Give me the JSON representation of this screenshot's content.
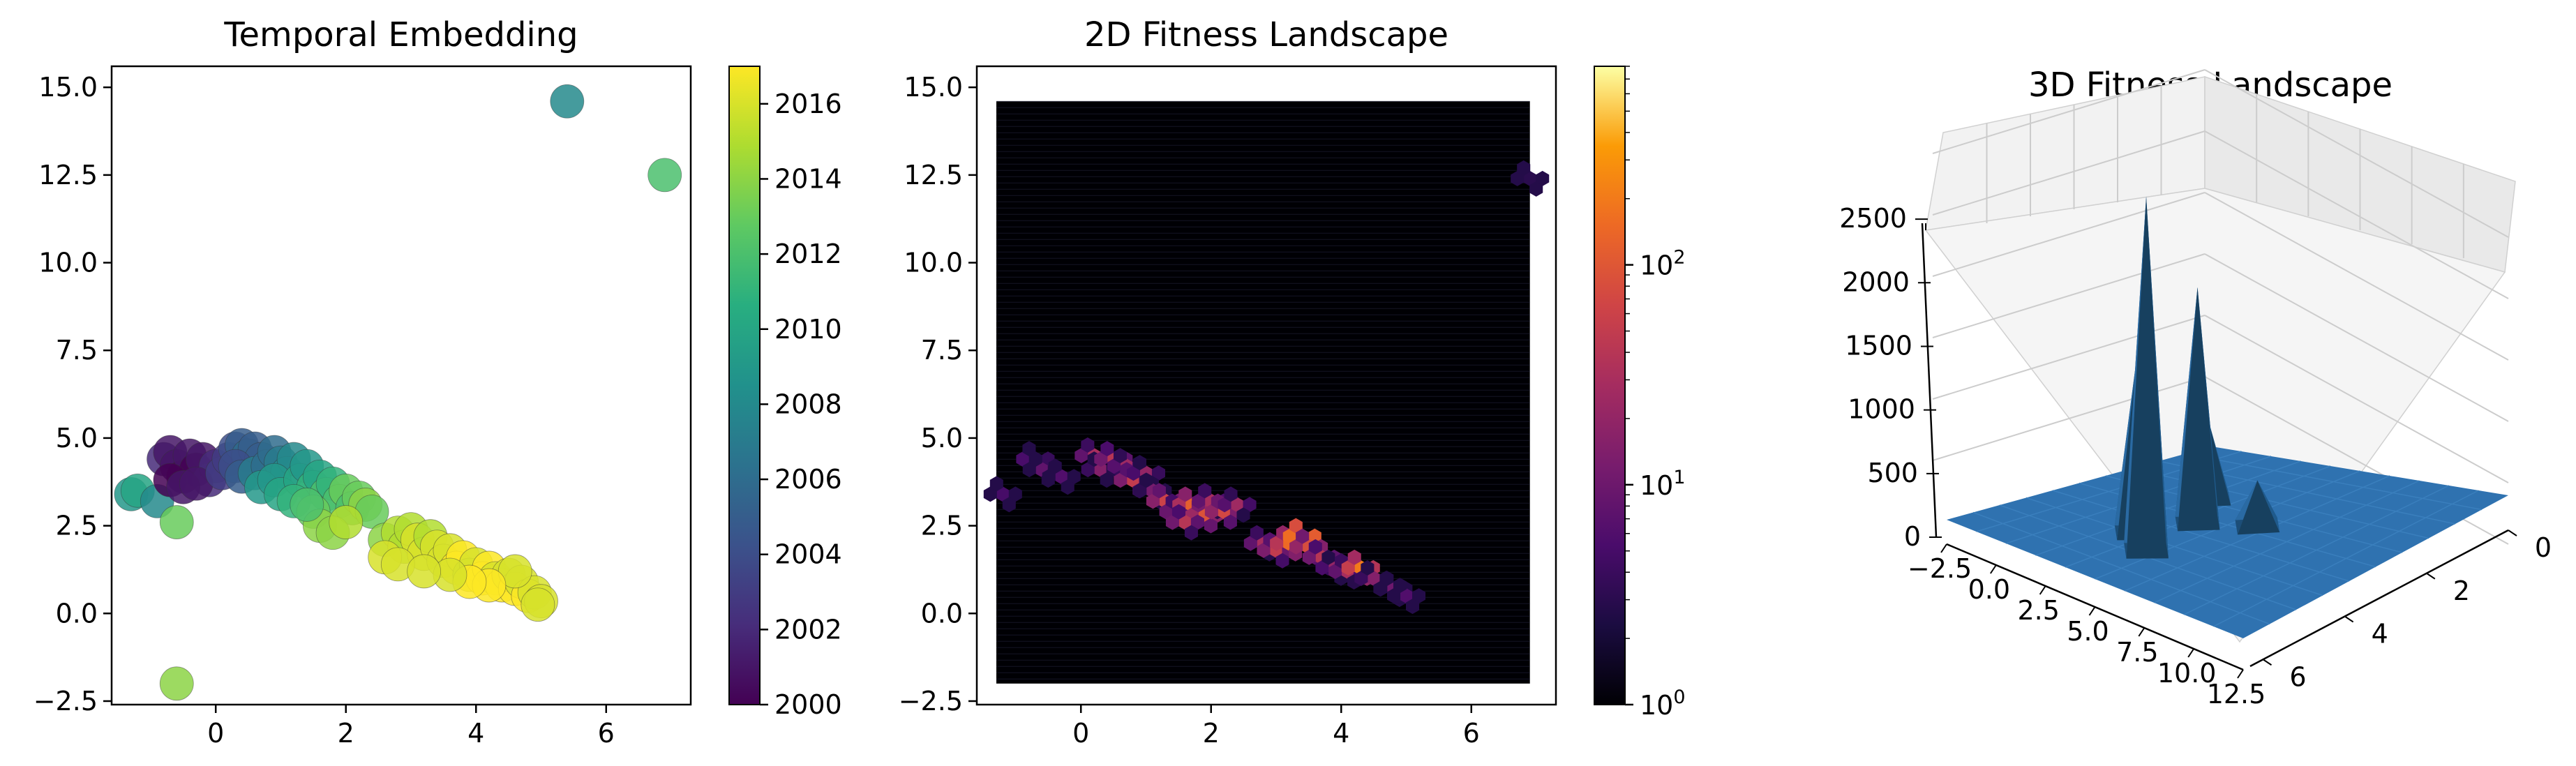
{
  "chart_data": [
    {
      "type": "scatter",
      "title": "Temporal Embedding",
      "xlabel": "",
      "ylabel": "",
      "xlim": [
        -1.6,
        7.3
      ],
      "ylim": [
        -2.6,
        15.6
      ],
      "x_ticks": [
        "0",
        "2",
        "4",
        "6"
      ],
      "y_ticks": [
        "−2.5",
        "0.0",
        "2.5",
        "5.0",
        "7.5",
        "10.0",
        "12.5",
        "15.0"
      ],
      "colorbar": {
        "colormap": "viridis",
        "range": [
          2000,
          2017
        ],
        "ticks": [
          "2000",
          "2002",
          "2004",
          "2006",
          "2008",
          "2010",
          "2012",
          "2014",
          "2016"
        ]
      },
      "points_note": "approximate cluster of UMAP embedding points colored by year",
      "points": [
        [
          -1.3,
          3.4,
          2009
        ],
        [
          -1.2,
          3.5,
          2010
        ],
        [
          -0.9,
          3.2,
          2008
        ],
        [
          -0.6,
          2.6,
          2013
        ],
        [
          -0.6,
          -2.0,
          2014
        ],
        [
          -0.8,
          4.4,
          2002
        ],
        [
          -0.7,
          4.6,
          2001
        ],
        [
          -0.6,
          4.2,
          2001
        ],
        [
          -0.5,
          3.9,
          2000
        ],
        [
          -0.4,
          4.5,
          2001
        ],
        [
          -0.3,
          4.1,
          2000
        ],
        [
          -0.2,
          4.4,
          2001
        ],
        [
          -0.1,
          3.8,
          2002
        ],
        [
          0.0,
          4.2,
          2002
        ],
        [
          -0.7,
          3.8,
          2000
        ],
        [
          -0.5,
          3.6,
          2001
        ],
        [
          -0.3,
          3.7,
          2001
        ],
        [
          0.1,
          4.0,
          2003
        ],
        [
          0.2,
          4.4,
          2003
        ],
        [
          0.3,
          4.7,
          2004
        ],
        [
          0.4,
          4.8,
          2005
        ],
        [
          0.5,
          4.5,
          2006
        ],
        [
          0.6,
          4.7,
          2005
        ],
        [
          0.7,
          4.4,
          2005
        ],
        [
          0.3,
          4.2,
          2004
        ],
        [
          0.4,
          3.9,
          2005
        ],
        [
          0.6,
          4.0,
          2007
        ],
        [
          0.8,
          4.2,
          2006
        ],
        [
          0.9,
          4.6,
          2006
        ],
        [
          1.0,
          4.3,
          2007
        ],
        [
          1.1,
          4.0,
          2008
        ],
        [
          1.2,
          4.4,
          2008
        ],
        [
          0.7,
          3.6,
          2009
        ],
        [
          0.9,
          3.8,
          2009
        ],
        [
          1.0,
          3.4,
          2010
        ],
        [
          1.3,
          3.8,
          2010
        ],
        [
          1.4,
          4.2,
          2009
        ],
        [
          1.5,
          3.6,
          2011
        ],
        [
          1.6,
          3.9,
          2010
        ],
        [
          1.7,
          3.4,
          2012
        ],
        [
          1.2,
          3.2,
          2011
        ],
        [
          1.8,
          3.7,
          2011
        ],
        [
          1.9,
          3.2,
          2012
        ],
        [
          2.0,
          3.5,
          2013
        ],
        [
          2.1,
          3.0,
          2012
        ],
        [
          2.2,
          3.3,
          2013
        ],
        [
          2.3,
          3.1,
          2014
        ],
        [
          2.4,
          2.9,
          2013
        ],
        [
          1.5,
          2.9,
          2013
        ],
        [
          1.6,
          2.5,
          2014
        ],
        [
          1.8,
          2.3,
          2014
        ],
        [
          2.0,
          2.6,
          2015
        ],
        [
          1.4,
          3.1,
          2012
        ],
        [
          2.6,
          2.1,
          2014
        ],
        [
          2.8,
          2.3,
          2015
        ],
        [
          2.9,
          1.9,
          2015
        ],
        [
          3.0,
          2.4,
          2015
        ],
        [
          3.1,
          2.1,
          2016
        ],
        [
          3.2,
          1.7,
          2016
        ],
        [
          3.3,
          2.2,
          2015
        ],
        [
          3.4,
          1.9,
          2016
        ],
        [
          2.6,
          1.6,
          2016
        ],
        [
          2.8,
          1.4,
          2016
        ],
        [
          3.5,
          1.5,
          2016
        ],
        [
          3.6,
          1.8,
          2016
        ],
        [
          3.7,
          1.3,
          2017
        ],
        [
          3.8,
          1.6,
          2017
        ],
        [
          3.9,
          1.1,
          2016
        ],
        [
          4.0,
          1.4,
          2016
        ],
        [
          4.1,
          1.0,
          2017
        ],
        [
          4.2,
          1.3,
          2017
        ],
        [
          4.3,
          1.0,
          2016
        ],
        [
          4.4,
          0.8,
          2017
        ],
        [
          4.5,
          1.1,
          2016
        ],
        [
          4.6,
          0.7,
          2017
        ],
        [
          4.7,
          0.9,
          2016
        ],
        [
          4.8,
          0.5,
          2017
        ],
        [
          4.9,
          0.6,
          2016
        ],
        [
          5.0,
          0.35,
          2016
        ],
        [
          4.95,
          0.25,
          2016
        ],
        [
          4.6,
          1.2,
          2016
        ],
        [
          4.2,
          0.8,
          2017
        ],
        [
          3.9,
          0.9,
          2017
        ],
        [
          3.6,
          1.1,
          2016
        ],
        [
          3.2,
          1.2,
          2016
        ],
        [
          5.4,
          14.6,
          2008
        ],
        [
          6.9,
          12.5,
          2012
        ]
      ]
    },
    {
      "type": "heatmap",
      "subtype": "hexbin",
      "title": "2D Fitness Landscape",
      "xlabel": "",
      "ylabel": "",
      "xlim": [
        -1.6,
        7.3
      ],
      "ylim": [
        -2.6,
        15.6
      ],
      "x_ticks": [
        "0",
        "2",
        "4",
        "6"
      ],
      "y_ticks": [
        "−2.5",
        "0.0",
        "2.5",
        "5.0",
        "7.5",
        "10.0",
        "12.5",
        "15.0"
      ],
      "grid_extent": {
        "x": [
          -1.3,
          6.9
        ],
        "y": [
          -2.0,
          14.6
        ]
      },
      "colorbar": {
        "colormap": "inferno",
        "scale": "log",
        "range": [
          1,
          800
        ],
        "ticks": [
          {
            "base": "10",
            "exp": "0"
          },
          {
            "base": "10",
            "exp": "1"
          },
          {
            "base": "10",
            "exp": "2"
          }
        ]
      },
      "bins_note": "approximate fitness counts in hexagonal bins",
      "bins": [
        [
          -1.2,
          3.4,
          5
        ],
        [
          -0.7,
          4.4,
          20
        ],
        [
          -0.6,
          4.1,
          8
        ],
        [
          -0.3,
          3.9,
          6
        ],
        [
          0.2,
          4.5,
          30
        ],
        [
          0.3,
          4.1,
          15
        ],
        [
          0.5,
          4.4,
          40
        ],
        [
          0.7,
          4.2,
          25
        ],
        [
          0.8,
          3.8,
          50
        ],
        [
          1.0,
          4.0,
          20
        ],
        [
          1.1,
          3.5,
          12
        ],
        [
          1.3,
          3.2,
          60
        ],
        [
          1.5,
          2.9,
          35
        ],
        [
          1.7,
          3.1,
          120
        ],
        [
          1.9,
          2.8,
          90
        ],
        [
          2.0,
          3.2,
          30
        ],
        [
          2.2,
          2.9,
          70
        ],
        [
          2.4,
          3.1,
          25
        ],
        [
          1.6,
          2.6,
          40
        ],
        [
          2.8,
          2.0,
          30
        ],
        [
          3.0,
          1.8,
          50
        ],
        [
          3.2,
          2.0,
          150
        ],
        [
          3.4,
          2.2,
          600
        ],
        [
          3.5,
          1.9,
          80
        ],
        [
          3.7,
          1.6,
          40
        ],
        [
          3.9,
          1.3,
          20
        ],
        [
          4.1,
          1.2,
          30
        ],
        [
          4.3,
          1.3,
          200
        ],
        [
          4.5,
          1.0,
          15
        ],
        [
          4.8,
          0.7,
          10
        ],
        [
          5.0,
          0.5,
          6
        ],
        [
          6.9,
          12.4,
          3
        ]
      ]
    },
    {
      "type": "surface",
      "title": "3D Fitness Landscape",
      "xlabel": "",
      "ylabel": "",
      "zlabel": "",
      "x_ticks": [
        "−2.5",
        "0.0",
        "2.5",
        "5.0",
        "7.5",
        "10.0",
        "12.5"
      ],
      "y_ticks": [
        "0",
        "2",
        "4",
        "6"
      ],
      "z_ticks": [
        "0",
        "500",
        "1000",
        "1500",
        "2000",
        "2500"
      ],
      "zlim": [
        0,
        2700
      ],
      "peaks": [
        {
          "x": 4.5,
          "y": 1.5,
          "z": 2700
        },
        {
          "x": 4.0,
          "y": 3.0,
          "z": 1800
        },
        {
          "x": 3.0,
          "y": 2.0,
          "z": 1350
        },
        {
          "x": 2.5,
          "y": 4.0,
          "z": 600
        },
        {
          "x": 6.0,
          "y": 3.5,
          "z": 350
        }
      ],
      "surface_color": "#1f77b4"
    }
  ]
}
